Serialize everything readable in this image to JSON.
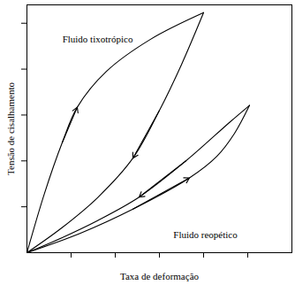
{
  "chart_data": {
    "type": "line",
    "x_label": "Taxa de deformação",
    "y_label": "Tensão de cisalhamento",
    "xlim": [
      0,
      6
    ],
    "ylim": [
      0,
      5.4
    ],
    "xticks": [
      1,
      2,
      3,
      4,
      5
    ],
    "yticks": [
      1,
      2,
      3,
      4,
      5
    ],
    "tick_labels": false,
    "grid": false,
    "marker": "arrow",
    "series": [
      {
        "name": "Fluido tixotrópico",
        "color": "#000000",
        "x": [
          0,
          0.4,
          0.8,
          1.14,
          1.8,
          2.8,
          4,
          3.5,
          3,
          2.4,
          1.6,
          0.8,
          0
        ],
        "y": [
          0,
          1.3,
          2.4,
          3.17,
          3.95,
          4.65,
          5.23,
          4.1,
          3.1,
          2.06,
          1.2,
          0.55,
          0
        ],
        "label_x": 1.6,
        "label_y": 4.65
      },
      {
        "name": "Fluido reopético",
        "color": "#000000",
        "x": [
          0,
          1.2,
          2.4,
          3.68,
          4.3,
          4.7,
          5.04,
          4.6,
          3.6,
          2.54,
          1.6,
          0.8,
          0
        ],
        "y": [
          0,
          0.42,
          0.95,
          1.63,
          2.1,
          2.6,
          3.21,
          2.85,
          2.0,
          1.21,
          0.7,
          0.33,
          0
        ],
        "label_x": 4.04,
        "label_y": 0.38
      }
    ]
  }
}
